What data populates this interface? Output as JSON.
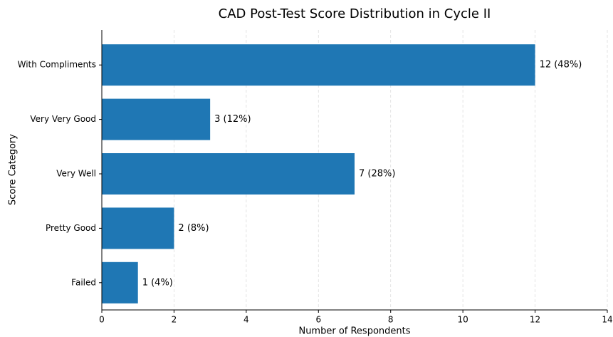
{
  "chart_data": {
    "type": "bar",
    "orientation": "horizontal",
    "title": "CAD Post-Test Score Distribution in Cycle II",
    "x_label": "Number of Respondents",
    "y_label": "Score Category",
    "categories": [
      "With Compliments",
      "Very Very Good",
      "Very Well",
      "Pretty Good",
      "Failed"
    ],
    "values": [
      12,
      3,
      7,
      2,
      1
    ],
    "value_labels": [
      "12 (48%)",
      "3 (12%)",
      "7 (28%)",
      "2 (8%)",
      "1 (4%)"
    ],
    "color": "#1f77b4",
    "xlim": [
      0,
      14
    ],
    "xticks": [
      0,
      2,
      4,
      6,
      8,
      10,
      12,
      14
    ],
    "grid": true
  }
}
